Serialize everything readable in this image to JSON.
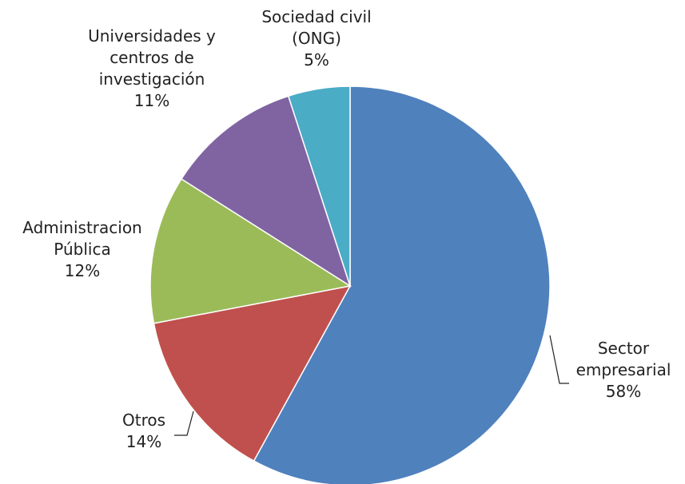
{
  "chart_data": {
    "type": "pie",
    "title": "",
    "slices": [
      {
        "label": "Sector empresarial",
        "label_lines": [
          "Sector",
          "empresarial"
        ],
        "value": 58,
        "value_text": "58%",
        "color": "#4F81BD"
      },
      {
        "label": "Otros",
        "label_lines": [
          "Otros"
        ],
        "value": 14,
        "value_text": "14%",
        "color": "#C0504D"
      },
      {
        "label": "Administracion Pública",
        "label_lines": [
          "Administracion",
          "Pública"
        ],
        "value": 12,
        "value_text": "12%",
        "color": "#9BBB59"
      },
      {
        "label": "Universidades y centros de investigación",
        "label_lines": [
          "Universidades y",
          "centros de",
          "investigación"
        ],
        "value": 11,
        "value_text": "11%",
        "color": "#8064A2"
      },
      {
        "label": "Sociedad civil (ONG)",
        "label_lines": [
          "Sociedad civil",
          "(ONG)"
        ],
        "value": 5,
        "value_text": "5%",
        "color": "#4BACC6"
      }
    ],
    "start_angle": "12 o'clock",
    "direction": "clockwise",
    "legend": "none"
  }
}
